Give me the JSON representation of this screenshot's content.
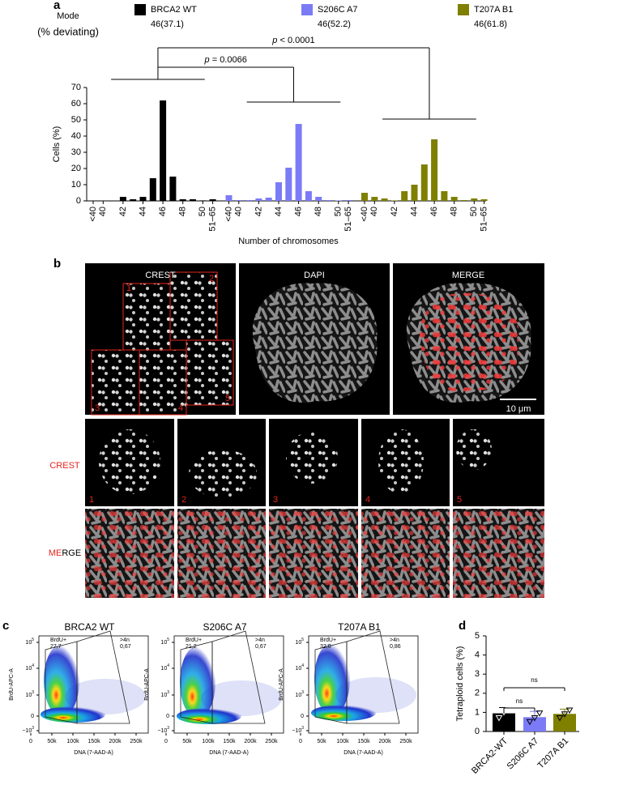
{
  "panel_labels": [
    "a",
    "b",
    "c",
    "d"
  ],
  "chart_data": [
    {
      "type": "bar",
      "legend_title": [
        "Mode",
        "(% deviating)"
      ],
      "categories": [
        "<40",
        "40",
        null,
        "42",
        null,
        "44",
        null,
        "46",
        null,
        "48",
        null,
        "50",
        "51–65"
      ],
      "series": [
        {
          "name": "BRCA2 WT",
          "mode": "46(37.1)",
          "color": "#000000",
          "values": [
            0,
            0,
            0,
            2.5,
            1,
            2.5,
            14,
            62,
            15,
            1,
            1,
            0.3,
            1
          ]
        },
        {
          "name": "S206C A7",
          "mode": "46(52.2)",
          "color": "#7b7bf7",
          "values": [
            3.5,
            0.5,
            0.5,
            1.5,
            2,
            11.5,
            20.5,
            47.5,
            6,
            2.5,
            0.5,
            0.3,
            0.5
          ]
        },
        {
          "name": "T207A B1",
          "mode": "46(61.8)",
          "color": "#7f7f00",
          "values": [
            5,
            2.5,
            1.5,
            0.3,
            6,
            10,
            22.5,
            38,
            6,
            2.5,
            0.5,
            1.5,
            1
          ]
        }
      ],
      "ylim": [
        0,
        70
      ],
      "yticks": [
        0,
        10,
        20,
        30,
        40,
        50,
        60,
        70
      ],
      "ylabel": "Cells (%)",
      "xlabel": "Number of chromosomes",
      "significance": [
        {
          "symbol": "p",
          "text": " = 0.0066"
        },
        {
          "symbol": "p",
          "text": " < 0.0001"
        }
      ]
    },
    {
      "type": "bar",
      "categories": [
        "BRCA2-WT",
        "S206C A7",
        "T207A B1"
      ],
      "colors": [
        "#000000",
        "#7b7bf7",
        "#7f7f00"
      ],
      "values": [
        0.95,
        0.75,
        0.92
      ],
      "errors": [
        0.3,
        0.3,
        0.25
      ],
      "points": [
        [
          0.7,
          1.0,
          1.15
        ],
        [
          0.5,
          0.7,
          0.95
        ],
        [
          0.7,
          0.9,
          1.1
        ]
      ],
      "ylim": [
        0,
        5
      ],
      "yticks": [
        0,
        1,
        2,
        3,
        4,
        5
      ],
      "ylabel": "Tetraploid cells (%)",
      "significance": [
        "ns",
        "ns"
      ]
    }
  ],
  "microscopy": {
    "top_row": [
      "CREST",
      "DAPI",
      "MERGE"
    ],
    "regions": [
      "1",
      "2",
      "3",
      "4",
      "5"
    ],
    "scale_bar": "10 μm",
    "row_crest": "CREST",
    "row_merge": [
      "ME",
      "RGE"
    ]
  },
  "flow": {
    "x_label": "DNA (7-AAD-A)",
    "y_label": "BrdU-APC-A",
    "xticks": [
      "0",
      "50k",
      "100k",
      "150k",
      "200k",
      "250k"
    ],
    "yticks": [
      {
        "base": "10",
        "exp": "5"
      },
      {
        "base": "10",
        "exp": "4"
      },
      {
        "base": "10",
        "exp": "3"
      },
      "0",
      {
        "base": "−10",
        "exp": "3"
      }
    ],
    "plots": [
      {
        "title": "BRCA2 WT",
        "gates": [
          {
            "name": "BrdU+",
            "value": "27,7"
          },
          {
            "name": ">4n",
            "value": "0,67"
          }
        ]
      },
      {
        "title": "S206C A7",
        "gates": [
          {
            "name": "BrdU+",
            "value": "21,2"
          },
          {
            "name": ">4n",
            "value": "0,67"
          }
        ]
      },
      {
        "title": "T207A B1",
        "gates": [
          {
            "name": "BrdU+",
            "value": "32,0"
          },
          {
            "name": ">4n",
            "value": "0,86"
          }
        ]
      }
    ]
  }
}
